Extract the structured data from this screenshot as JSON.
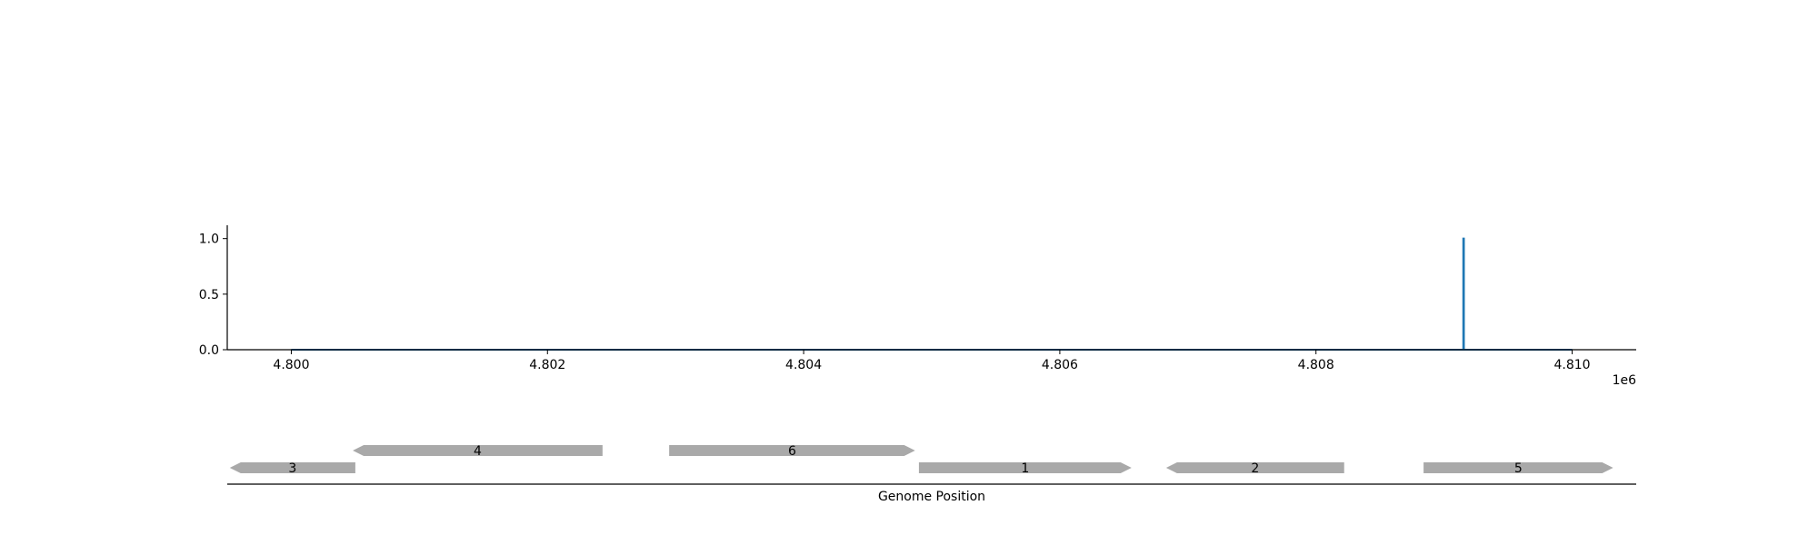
{
  "chart_data": [
    {
      "type": "line",
      "x_scale_label": "1e6",
      "xlim": [
        4799500,
        4810500
      ],
      "ylim": [
        0,
        1.12
      ],
      "x_ticks": [
        4800000,
        4802000,
        4804000,
        4806000,
        4808000,
        4810000
      ],
      "x_tick_labels": [
        "4.800",
        "4.802",
        "4.804",
        "4.806",
        "4.808",
        "4.810"
      ],
      "y_ticks": [
        0,
        0.5,
        1
      ],
      "y_tick_labels": [
        "0.0",
        "0.5",
        "1.0"
      ],
      "grid": false,
      "series": [
        {
          "color": "#1f77b4",
          "x": [
            4800000,
            4809150,
            4809150,
            4809155,
            4809155,
            4810000
          ],
          "y": [
            0,
            0,
            1,
            1,
            0,
            0
          ]
        }
      ]
    },
    {
      "type": "gene-track",
      "xlabel": "Genome Position",
      "xlim": [
        4799500,
        4810500
      ],
      "gene_color": "#a9a9a9",
      "genes": [
        {
          "label": "3",
          "start": 4799520,
          "end": 4800500,
          "strand": "-",
          "row": 0
        },
        {
          "label": "4",
          "start": 4800480,
          "end": 4802430,
          "strand": "-",
          "row": 1
        },
        {
          "label": "6",
          "start": 4802950,
          "end": 4804870,
          "strand": "+",
          "row": 1
        },
        {
          "label": "1",
          "start": 4804900,
          "end": 4806560,
          "strand": "+",
          "row": 0
        },
        {
          "label": "2",
          "start": 4806830,
          "end": 4808220,
          "strand": "-",
          "row": 0
        },
        {
          "label": "5",
          "start": 4808840,
          "end": 4810320,
          "strand": "+",
          "row": 0
        }
      ]
    }
  ]
}
